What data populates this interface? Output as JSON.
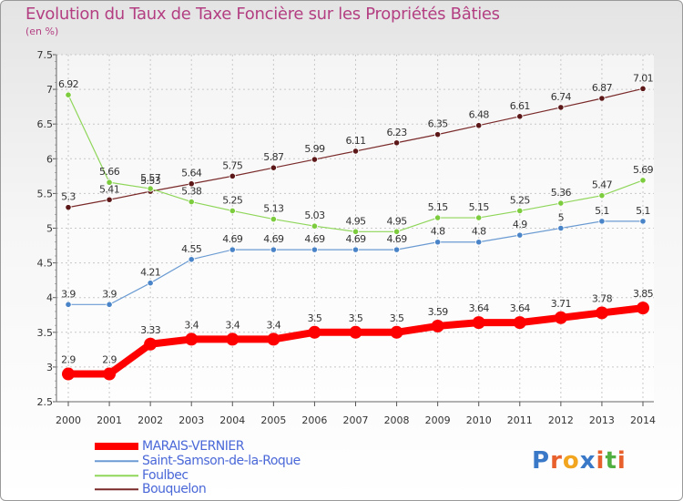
{
  "chart_data": {
    "type": "line",
    "title": "Evolution du Taux de Taxe Foncière sur les Propriétés Bâties",
    "subtitle": "(en %)",
    "xlabel": "",
    "ylabel": "(en %)",
    "ylim": [
      2.5,
      7.5
    ],
    "yticks": [
      "2.5",
      "3",
      "3.5",
      "4",
      "4.5",
      "5",
      "5.5",
      "6",
      "6.5",
      "7",
      "7.5"
    ],
    "categories": [
      "2000",
      "2001",
      "2002",
      "2003",
      "2004",
      "2005",
      "2006",
      "2007",
      "2008",
      "2009",
      "2010",
      "2011",
      "2012",
      "2013",
      "2014"
    ],
    "grid": true,
    "legend_position": "bottom-left",
    "series": [
      {
        "name": "Bouquelon",
        "color": "#7a2a2a",
        "marker": "#5c1818",
        "width": 1.2,
        "values": [
          5.3,
          5.41,
          5.53,
          5.64,
          5.75,
          5.87,
          5.99,
          6.11,
          6.23,
          6.35,
          6.48,
          6.61,
          6.74,
          6.87,
          7.01
        ],
        "labels": [
          "5.3",
          "5.41",
          "5.53",
          "5.64",
          "5.75",
          "5.87",
          "5.99",
          "6.11",
          "6.23",
          "6.35",
          "6.48",
          "6.61",
          "6.74",
          "6.87",
          "7.01"
        ]
      },
      {
        "name": "Foulbec",
        "color": "#8fd65a",
        "marker": "#7ccc3e",
        "width": 1.2,
        "values": [
          6.92,
          5.66,
          5.57,
          5.38,
          5.25,
          5.13,
          5.03,
          4.95,
          4.95,
          5.15,
          5.15,
          5.25,
          5.36,
          5.47,
          5.69
        ],
        "labels": [
          "6.92",
          "5.66",
          "5.57",
          "5.38",
          "5.25",
          "5.13",
          "5.03",
          "4.95",
          "4.95",
          "5.15",
          "5.15",
          "5.25",
          "5.36",
          "5.47",
          "5.69"
        ]
      },
      {
        "name": "Saint-Samson-de-la-Roque",
        "color": "#6b9bd2",
        "marker": "#4a84c8",
        "width": 1.2,
        "values": [
          3.9,
          3.9,
          4.21,
          4.55,
          4.69,
          4.69,
          4.69,
          4.69,
          4.69,
          4.8,
          4.8,
          4.9,
          5.0,
          5.1,
          5.1
        ],
        "labels": [
          "3.9",
          "3.9",
          "4.21",
          "4.55",
          "4.69",
          "4.69",
          "4.69",
          "4.69",
          "4.69",
          "4.8",
          "4.8",
          "4.9",
          "5",
          "5.1",
          "5.1"
        ]
      },
      {
        "name": "MARAIS-VERNIER",
        "color": "#ff0000",
        "marker": "#ff0000",
        "width": 8,
        "values": [
          2.9,
          2.9,
          3.33,
          3.4,
          3.4,
          3.4,
          3.5,
          3.5,
          3.5,
          3.59,
          3.64,
          3.64,
          3.71,
          3.78,
          3.85
        ],
        "labels": [
          "2.9",
          "2.9",
          "3.33",
          "3.4",
          "3.4",
          "3.4",
          "3.5",
          "3.5",
          "3.5",
          "3.59",
          "3.64",
          "3.64",
          "3.71",
          "3.78",
          "3.85"
        ]
      }
    ],
    "legend": [
      "MARAIS-VERNIER",
      "Saint-Samson-de-la-Roque",
      "Foulbec",
      "Bouquelon"
    ]
  },
  "logo": {
    "text": "Proxiti",
    "letters": [
      "P",
      "r",
      "o",
      "x",
      "i",
      "t",
      "i"
    ],
    "colors": [
      "#3a78c8",
      "#e8602c",
      "#f2a51f",
      "#3a78c8",
      "#e8602c",
      "#52b043",
      "#e8602c"
    ]
  }
}
